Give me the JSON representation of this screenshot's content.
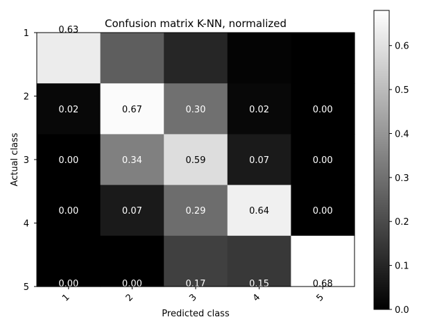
{
  "chart_data": {
    "type": "heatmap",
    "title": "Confusion matrix K-NN, normalized",
    "xlabel": "Predicted class",
    "ylabel": "Actual class",
    "x_categories": [
      "1",
      "2",
      "3",
      "4",
      "5"
    ],
    "y_categories": [
      "1",
      "2",
      "3",
      "4",
      "5"
    ],
    "values": [
      [
        0.63,
        0.25,
        0.1,
        0.01,
        0.0
      ],
      [
        0.02,
        0.67,
        0.3,
        0.02,
        0.0
      ],
      [
        0.0,
        0.34,
        0.59,
        0.07,
        0.0
      ],
      [
        0.0,
        0.07,
        0.29,
        0.64,
        0.0
      ],
      [
        0.0,
        0.0,
        0.17,
        0.15,
        0.68
      ]
    ],
    "cell_labels": [
      [
        "0.63",
        "",
        "",
        "",
        ""
      ],
      [
        "0.02",
        "0.67",
        "0.30",
        "0.02",
        "0.00"
      ],
      [
        "0.00",
        "0.34",
        "0.59",
        "0.07",
        "0.00"
      ],
      [
        "0.00",
        "0.07",
        "0.29",
        "0.64",
        "0.00"
      ],
      [
        "0.00",
        "0.00",
        "0.17",
        "0.15",
        "0.68"
      ]
    ],
    "colormap": "gray",
    "vmin": 0.0,
    "vmax": 0.68,
    "colorbar_ticks": [
      "0.0",
      "0.1",
      "0.2",
      "0.3",
      "0.4",
      "0.5",
      "0.6"
    ],
    "text_color_light": "#ffffff",
    "text_color_dark": "#000000"
  }
}
